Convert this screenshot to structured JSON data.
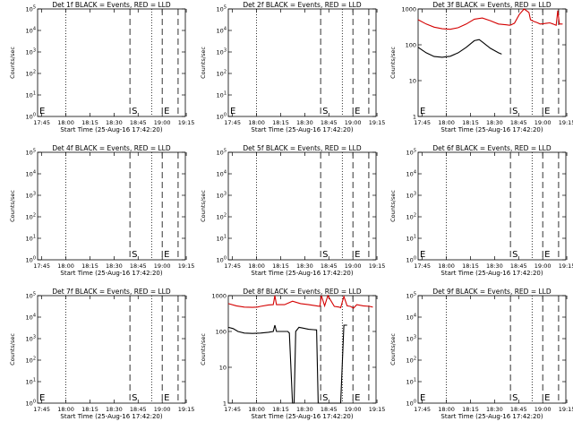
{
  "chart_data": [
    {
      "type": "line",
      "title": "Det 1f BLACK = Events, RED = LLD",
      "ylabel": "Counts/sec",
      "xlabel": "Start Time (25-Aug-16 17:42:20)",
      "scale": "log",
      "ylim": [
        1.0,
        100000.0
      ],
      "yticks": [
        "10^0",
        "10^1",
        "10^2",
        "10^3",
        "10^4",
        "10^5"
      ],
      "xticks": [
        "17:45",
        "18:00",
        "18:15",
        "18:30",
        "18:45",
        "19:00",
        "19:15"
      ],
      "markers": {
        "E_left": "E",
        "S": "S",
        "E": "E"
      },
      "series": []
    },
    {
      "type": "line",
      "title": "Det 2f BLACK = Events, RED = LLD",
      "ylabel": "Counts/sec",
      "xlabel": "Start Time (25-Aug-16 17:42:20)",
      "scale": "log",
      "ylim": [
        1.0,
        100000.0
      ],
      "yticks": [
        "10^0",
        "10^1",
        "10^2",
        "10^3",
        "10^4",
        "10^5"
      ],
      "xticks": [
        "17:45",
        "18:00",
        "18:15",
        "18:30",
        "18:45",
        "19:00",
        "19:15"
      ],
      "markers": {
        "E_left": "E",
        "S": "S",
        "E": "E"
      },
      "series": []
    },
    {
      "type": "line",
      "title": "Det 3f BLACK = Events, RED = LLD",
      "ylabel": "Counts/sec",
      "xlabel": "Start Time (25-Aug-16 17:42:20)",
      "scale": "log",
      "ylim": [
        1,
        1000
      ],
      "yticks": [
        "1",
        "10",
        "100",
        "1000"
      ],
      "xticks": [
        "17:45",
        "18:00",
        "18:15",
        "18:30",
        "18:45",
        "19:00",
        "19:15"
      ],
      "markers": {
        "E_left": "E",
        "S": "S",
        "E": "E"
      },
      "series": [
        {
          "color": "#d40000",
          "x": [
            0,
            5,
            10,
            15,
            20,
            25,
            30,
            35,
            40,
            45,
            50,
            55,
            57,
            58,
            59,
            60,
            63,
            66,
            69,
            70,
            72,
            74,
            76,
            78,
            80,
            82,
            84,
            86,
            87,
            88,
            90
          ],
          "y": [
            500,
            380,
            310,
            280,
            270,
            300,
            380,
            520,
            560,
            470,
            380,
            360,
            350,
            360,
            380,
            400,
            700,
            1000,
            800,
            500,
            450,
            420,
            380,
            390,
            400,
            410,
            380,
            350,
            900,
            380,
            380
          ]
        },
        {
          "color": "#000000",
          "x": [
            0,
            5,
            10,
            15,
            20,
            25,
            30,
            35,
            38,
            40,
            45,
            50,
            52
          ],
          "y": [
            85,
            60,
            47,
            45,
            48,
            60,
            85,
            130,
            140,
            120,
            80,
            60,
            55
          ]
        }
      ]
    },
    {
      "type": "line",
      "title": "Det 4f BLACK = Events, RED = LLD",
      "ylabel": "Counts/sec",
      "xlabel": "Start Time (25-Aug-16 17:42:20)",
      "scale": "log",
      "ylim": [
        1.0,
        100000.0
      ],
      "yticks": [
        "10^0",
        "10^1",
        "10^2",
        "10^3",
        "10^4",
        "10^5"
      ],
      "xticks": [
        "17:45",
        "18:00",
        "18:15",
        "18:30",
        "18:45",
        "19:00",
        "19:15"
      ],
      "markers": {
        "E_left": "",
        "S": "S",
        "E": "E"
      },
      "series": []
    },
    {
      "type": "line",
      "title": "Det 5f BLACK = Events, RED = LLD",
      "ylabel": "Counts/sec",
      "xlabel": "Start Time (25-Aug-16 17:42:20)",
      "scale": "log",
      "ylim": [
        1.0,
        100000.0
      ],
      "yticks": [
        "10^0",
        "10^1",
        "10^2",
        "10^3",
        "10^4",
        "10^5"
      ],
      "xticks": [
        "17:45",
        "18:00",
        "18:15",
        "18:30",
        "18:45",
        "19:00",
        "19:15"
      ],
      "markers": {
        "E_left": "",
        "S": "S",
        "E": "E"
      },
      "series": []
    },
    {
      "type": "line",
      "title": "Det 6f BLACK = Events, RED = LLD",
      "ylabel": "Counts/sec",
      "xlabel": "Start Time (25-Aug-16 17:42:20)",
      "scale": "log",
      "ylim": [
        1.0,
        100000.0
      ],
      "yticks": [
        "10^0",
        "10^1",
        "10^2",
        "10^3",
        "10^4",
        "10^5"
      ],
      "xticks": [
        "17:45",
        "18:00",
        "18:15",
        "18:30",
        "18:45",
        "19:00",
        "19:15"
      ],
      "markers": {
        "E_left": "E",
        "S": "S",
        "E": "E"
      },
      "series": []
    },
    {
      "type": "line",
      "title": "Det 7f BLACK = Events, RED = LLD",
      "ylabel": "Counts/sec",
      "xlabel": "Start Time (25-Aug-16 17:42:20)",
      "scale": "log",
      "ylim": [
        1.0,
        100000.0
      ],
      "yticks": [
        "10^0",
        "10^1",
        "10^2",
        "10^3",
        "10^4",
        "10^5"
      ],
      "xticks": [
        "17:45",
        "18:00",
        "18:15",
        "18:30",
        "18:45",
        "19:00",
        "19:15"
      ],
      "markers": {
        "E_left": "E",
        "S": "S",
        "E": "E"
      },
      "series": []
    },
    {
      "type": "line",
      "title": "Det 8f BLACK = Events, RED = LLD",
      "ylabel": "Counts/sec",
      "xlabel": "Start Time (25-Aug-16 17:42:20)",
      "scale": "log",
      "ylim": [
        1,
        1000
      ],
      "yticks": [
        "1",
        "10",
        "100",
        "1000"
      ],
      "xticks": [
        "17:45",
        "18:00",
        "18:15",
        "18:30",
        "18:45",
        "19:00",
        "19:15"
      ],
      "markers": {
        "E_left": "",
        "S": "S",
        "E": "E"
      },
      "series": [
        {
          "color": "#d40000",
          "x": [
            0,
            5,
            10,
            15,
            18,
            20,
            25,
            28,
            29,
            30,
            35,
            40,
            45,
            50,
            55,
            57,
            58,
            60,
            62,
            66,
            69,
            70,
            72,
            74,
            76,
            78,
            80,
            84,
            88,
            90
          ],
          "y": [
            600,
            520,
            480,
            470,
            480,
            500,
            550,
            560,
            1000,
            560,
            560,
            700,
            600,
            560,
            520,
            500,
            1000,
            520,
            1000,
            500,
            480,
            460,
            950,
            520,
            500,
            450,
            560,
            520,
            500,
            480
          ]
        },
        {
          "color": "#000000",
          "x": [
            0,
            3,
            6,
            10,
            15,
            20,
            25,
            28,
            29,
            30,
            35,
            37,
            38,
            40,
            41,
            42,
            44,
            46,
            50,
            53,
            55,
            56,
            58,
            60,
            65,
            67,
            68,
            70,
            72,
            73,
            74
          ],
          "y": [
            130,
            120,
            100,
            90,
            88,
            90,
            95,
            100,
            150,
            100,
            100,
            100,
            90,
            1,
            1,
            100,
            130,
            125,
            115,
            112,
            110,
            1,
            1,
            1,
            1,
            1,
            1,
            1,
            150,
            150,
            150
          ]
        }
      ]
    },
    {
      "type": "line",
      "title": "Det 9f BLACK = Events, RED = LLD",
      "ylabel": "Counts/sec",
      "xlabel": "Start Time (25-Aug-16 17:42:20)",
      "scale": "log",
      "ylim": [
        1.0,
        100000.0
      ],
      "yticks": [
        "10^0",
        "10^1",
        "10^2",
        "10^3",
        "10^4",
        "10^5"
      ],
      "xticks": [
        "17:45",
        "18:00",
        "18:15",
        "18:30",
        "18:45",
        "19:00",
        "19:15"
      ],
      "markers": {
        "E_left": "E",
        "S": "S",
        "E": "E"
      },
      "series": []
    }
  ]
}
